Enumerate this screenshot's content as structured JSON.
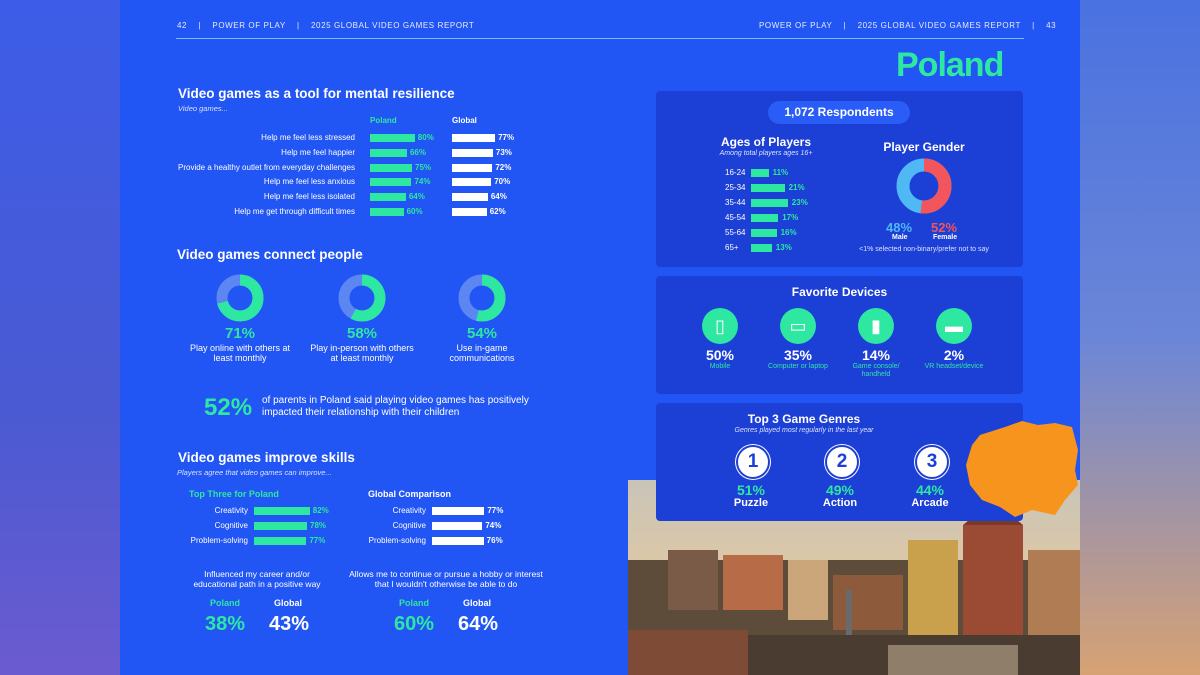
{
  "header": {
    "left_page_num": "42",
    "right_page_num": "43",
    "section": "POWER OF PLAY",
    "report": "2025 GLOBAL VIDEO GAMES REPORT",
    "sep": "|"
  },
  "country": "Poland",
  "colors": {
    "page_bg": "#2155f4",
    "panel_bg": "#1c3fd6",
    "accent": "#2ee8a2",
    "male": "#4fb8f5",
    "female": "#f2555b",
    "map": "#f7941d"
  },
  "resilience": {
    "title": "Video games as a tool for mental resilience",
    "subtitle": "Video games...",
    "col_poland": "Poland",
    "col_global": "Global",
    "rows": [
      {
        "label": "Help me feel less stressed",
        "poland": "80%",
        "poland_v": 80,
        "global": "77%",
        "global_v": 77
      },
      {
        "label": "Help me feel happier",
        "poland": "66%",
        "poland_v": 66,
        "global": "73%",
        "global_v": 73
      },
      {
        "label": "Provide a healthy outlet from everyday challenges",
        "poland": "75%",
        "poland_v": 75,
        "global": "72%",
        "global_v": 72
      },
      {
        "label": "Help me feel less anxious",
        "poland": "74%",
        "poland_v": 74,
        "global": "70%",
        "global_v": 70
      },
      {
        "label": "Help me feel less isolated",
        "poland": "64%",
        "poland_v": 64,
        "global": "64%",
        "global_v": 64
      },
      {
        "label": "Help me get through difficult times",
        "poland": "60%",
        "poland_v": 60,
        "global": "62%",
        "global_v": 62
      }
    ]
  },
  "connect": {
    "title": "Video games connect people",
    "items": [
      {
        "pct": "71%",
        "value": 71,
        "label": "Play online with others at least monthly"
      },
      {
        "pct": "58%",
        "value": 58,
        "label": "Play in-person with others at least monthly"
      },
      {
        "pct": "54%",
        "value": 54,
        "label": "Use in-game communications"
      }
    ],
    "parents_pct": "52%",
    "parents_text": "of parents in Poland said playing video games has positively impacted their relationship with their children"
  },
  "skills": {
    "title": "Video games improve skills",
    "subtitle": "Players agree that video games can improve...",
    "top_title": "Top Three for Poland",
    "global_title": "Global Comparison",
    "poland": [
      {
        "label": "Creativity",
        "pct": "82%",
        "value": 82
      },
      {
        "label": "Cognitive",
        "pct": "78%",
        "value": 78
      },
      {
        "label": "Problem-solving",
        "pct": "77%",
        "value": 77
      }
    ],
    "global": [
      {
        "label": "Creativity",
        "pct": "77%",
        "value": 77
      },
      {
        "label": "Cognitive",
        "pct": "74%",
        "value": 74
      },
      {
        "label": "Problem-solving",
        "pct": "76%",
        "value": 76
      }
    ],
    "career_label": "Influenced my career and/or educational path in a positive way",
    "hobby_label": "Allows me to continue or pursue a hobby or interest that I wouldn't otherwise be able to do",
    "poland_word": "Poland",
    "global_word": "Global",
    "career_poland": "38%",
    "career_global": "43%",
    "hobby_poland": "60%",
    "hobby_global": "64%"
  },
  "respondents": "1,072 Respondents",
  "ages": {
    "title": "Ages of Players",
    "subtitle": "Among total players ages 16+",
    "rows": [
      {
        "label": "16-24",
        "pct": "11%",
        "value": 11
      },
      {
        "label": "25-34",
        "pct": "21%",
        "value": 21
      },
      {
        "label": "35-44",
        "pct": "23%",
        "value": 23
      },
      {
        "label": "45-54",
        "pct": "17%",
        "value": 17
      },
      {
        "label": "55-64",
        "pct": "16%",
        "value": 16
      },
      {
        "label": "65+",
        "pct": "13%",
        "value": 13
      }
    ]
  },
  "gender": {
    "title": "Player Gender",
    "male_pct": "48%",
    "male_value": 48,
    "male_label": "Male",
    "female_pct": "52%",
    "female_value": 52,
    "female_label": "Female",
    "note": "<1% selected non-binary/prefer not to say"
  },
  "devices": {
    "title": "Favorite Devices",
    "items": [
      {
        "pct": "50%",
        "label": "Mobile",
        "icon": "mobile-phone-icon"
      },
      {
        "pct": "35%",
        "label": "Computer or laptop",
        "icon": "laptop-icon"
      },
      {
        "pct": "14%",
        "label": "Game console/ handheld",
        "icon": "game-console-icon"
      },
      {
        "pct": "2%",
        "label": "VR headset/device",
        "icon": "vr-headset-icon"
      }
    ]
  },
  "genres": {
    "title": "Top 3 Game Genres",
    "subtitle": "Genres played most regularly in the last year",
    "items": [
      {
        "rank": "1",
        "pct": "51%",
        "label": "Puzzle"
      },
      {
        "rank": "2",
        "pct": "49%",
        "label": "Action"
      },
      {
        "rank": "3",
        "pct": "44%",
        "label": "Arcade"
      }
    ]
  }
}
